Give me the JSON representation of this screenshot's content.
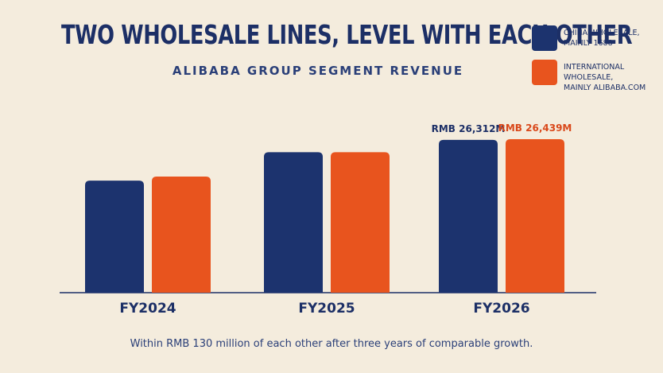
{
  "header": {
    "title": "TWO WHOLESALE LINES, LEVEL WITH EACH OTHER",
    "subtitle": "ALIBABA GROUP SEGMENT REVENUE"
  },
  "legend": [
    {
      "label_line1": "CHINA WHOLESALE,",
      "label_line2": "MAINLY 1688",
      "color": "#1c336e"
    },
    {
      "label_line1": "INTERNATIONAL WHOLESALE,",
      "label_line2": "MAINLY ALIBABA.COM",
      "color": "#e8541e"
    }
  ],
  "caption": "Within RMB 130 million of each other after three years of comparable growth.",
  "chart_data": {
    "type": "bar",
    "title": "TWO WHOLESALE LINES, LEVEL WITH EACH OTHER",
    "subtitle": "ALIBABA GROUP SEGMENT REVENUE",
    "categories": [
      "FY2024",
      "FY2025",
      "FY2026"
    ],
    "series": [
      {
        "name": "CHINA WHOLESALE, MAINLY 1688",
        "color": "#1c336e",
        "values": [
          19300,
          24200,
          26312
        ]
      },
      {
        "name": "INTERNATIONAL WHOLESALE, MAINLY ALIBABA.COM",
        "color": "#e8541e",
        "values": [
          20000,
          24200,
          26439
        ]
      }
    ],
    "data_labels": [
      {
        "category": "FY2026",
        "series": 0,
        "text": "RMB 26,312M"
      },
      {
        "category": "FY2026",
        "series": 1,
        "text": "RMB 26,439M"
      }
    ],
    "ylim": [
      0,
      26439
    ],
    "xlabel": "",
    "ylabel": "",
    "grid": false,
    "legend_position": "top-right"
  }
}
